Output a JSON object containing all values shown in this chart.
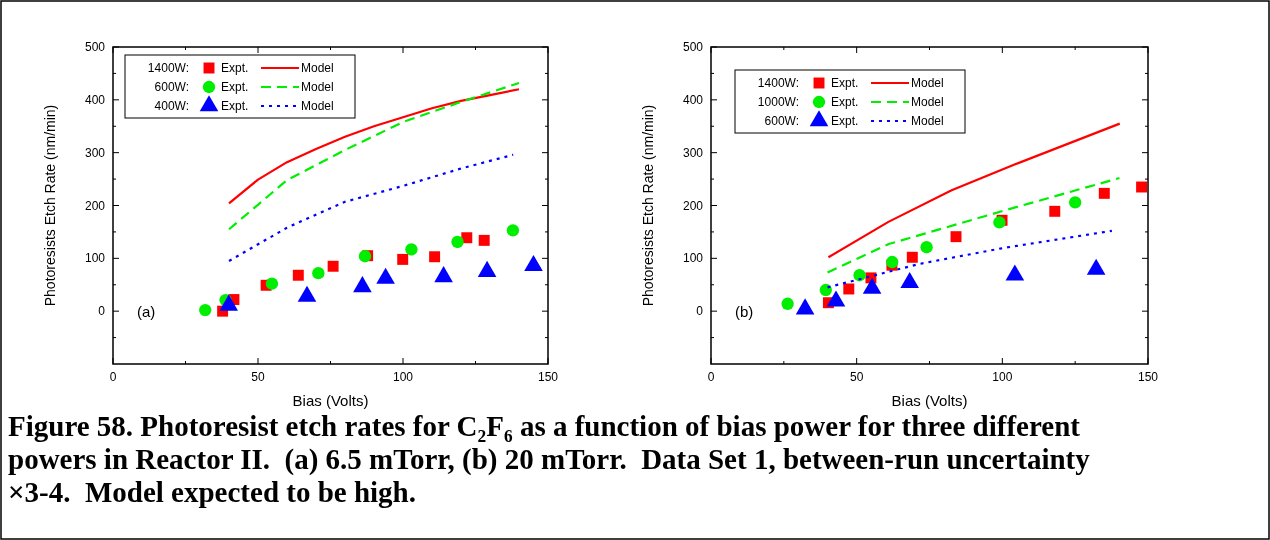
{
  "chart_data": [
    {
      "type": "scatter",
      "xlabel": "Bias (Volts)",
      "ylabel": "Photoresists Etch Rate (nm/min)",
      "xlim": [
        0,
        150
      ],
      "ylim": [
        -100,
        500
      ],
      "xticks": [
        0,
        {
          "value": 25,
          "label": null
        },
        50,
        {
          "value": 75,
          "label": null
        },
        100,
        {
          "value": 125,
          "label": null
        },
        150
      ],
      "yticks": [
        {
          "value": -50,
          "label": null
        },
        0,
        {
          "value": 50,
          "label": null
        },
        100,
        {
          "value": 150,
          "label": null
        },
        200,
        {
          "value": 250,
          "label": null
        },
        300,
        {
          "value": 350,
          "label": null
        },
        400,
        {
          "value": 450,
          "label": null
        },
        500
      ],
      "legend": "top left",
      "grid": false,
      "annotations": [
        "(a)",
        "1400W:",
        "600W:",
        "400W:",
        "Figure 58. Photoresist etch rates for C₂F₆ as a function of bias power for three different",
        "powers in Reactor II.  (a) 6.5 mTorr, (b) 20 mTorr.  Data Set 1, between-run uncertainty",
        "×3-4.  Model expected to be high."
      ],
      "series": [
        {
          "name": "Expt.",
          "type": "scatter",
          "marker": "square",
          "color": "#ff0000",
          "x": [
            37.8,
            41.7,
            52.8,
            63.9,
            75.9,
            87.8,
            99.9,
            110.9,
            122,
            128
          ],
          "values": [
            0,
            22,
            49,
            68,
            85,
            105,
            98,
            103,
            139,
            134
          ]
        },
        {
          "name": "Model",
          "type": "line",
          "line_style": "solid",
          "color": "#ff0000",
          "x": [
            40,
            50,
            60,
            70,
            80,
            90,
            100,
            110,
            120,
            130,
            140
          ],
          "values": [
            204,
            249,
            282,
            307,
            330,
            350,
            367,
            384,
            398,
            409,
            420
          ]
        },
        {
          "name": "Expt.",
          "type": "scatter",
          "marker": "circle",
          "color": "#00ee00",
          "x": [
            31.8,
            38.8,
            54.8,
            70.8,
            86.9,
            102.9,
            118.8,
            137.9
          ],
          "values": [
            2,
            21,
            52,
            72,
            104,
            117,
            131,
            153
          ]
        },
        {
          "name": "Model",
          "type": "line",
          "line_style": "dashed",
          "color": "#00ee00",
          "x": [
            40,
            60,
            80,
            100,
            120,
            140
          ],
          "values": [
            155,
            248,
            305,
            358,
            396,
            432
          ]
        },
        {
          "name": "Expt.",
          "type": "scatter",
          "marker": "triangle",
          "color": "#0000ff",
          "x": [
            39.9,
            66.9,
            86,
            94,
            114,
            129,
            145
          ],
          "values": [
            11,
            28,
            46,
            62,
            65,
            75,
            86
          ]
        },
        {
          "name": "Model",
          "type": "line",
          "line_style": "dotted",
          "color": "#0000ff",
          "x": [
            40,
            60,
            80,
            100,
            120,
            138
          ],
          "values": [
            95,
            158,
            207,
            237,
            270,
            296
          ]
        }
      ]
    },
    {
      "type": "scatter",
      "xlabel": "Bias (Volts)",
      "ylabel": "Photoresists Etch Rate (nm/min)",
      "xlim": [
        0,
        150
      ],
      "ylim": [
        -100,
        500
      ],
      "xticks": [
        0,
        {
          "value": 25,
          "label": null
        },
        50,
        {
          "value": 75,
          "label": null
        },
        100,
        {
          "value": 125,
          "label": null
        },
        150
      ],
      "yticks": [
        {
          "value": -50,
          "label": null
        },
        0,
        {
          "value": 50,
          "label": null
        },
        100,
        {
          "value": 150,
          "label": null
        },
        200,
        {
          "value": 250,
          "label": null
        },
        300,
        {
          "value": 350,
          "label": null
        },
        400,
        {
          "value": 450,
          "label": null
        },
        500
      ],
      "legend": "top left",
      "grid": false,
      "annotations": [
        "(b)",
        "1400W:",
        "1000W:",
        "600W:"
      ],
      "series": [
        {
          "name": "Expt.",
          "type": "scatter",
          "marker": "square",
          "color": "#ff0000",
          "x": [
            40.3,
            47.3,
            54.9,
            62.1,
            69.1,
            84.1,
            99.9,
            118,
            135,
            147.8
          ],
          "values": [
            16,
            42,
            63,
            87,
            102,
            141,
            172,
            189,
            223,
            235
          ]
        },
        {
          "name": "Model",
          "type": "line",
          "line_style": "solid",
          "color": "#ff0000",
          "x": [
            40.3,
            60.9,
            82.6,
            104.4,
            140.3
          ],
          "values": [
            102,
            169,
            229,
            278,
            355
          ]
        },
        {
          "name": "Expt.",
          "type": "scatter",
          "marker": "circle",
          "color": "#00ee00",
          "x": [
            26.3,
            39.4,
            51,
            62.2,
            74,
            99,
            125
          ],
          "values": [
            14,
            40,
            68,
            93,
            121,
            168,
            206
          ]
        },
        {
          "name": "Model",
          "type": "line",
          "line_style": "dashed",
          "color": "#00ee00",
          "x": [
            40,
            61,
            101,
            140.2
          ],
          "values": [
            73,
            127,
            191,
            252
          ]
        },
        {
          "name": "Expt.",
          "type": "scatter",
          "marker": "triangle",
          "color": "#0000ff",
          "x": [
            32.3,
            42.9,
            55.3,
            68.2,
            104.3,
            132.2
          ],
          "values": [
            4,
            19,
            43,
            54,
            68,
            79
          ]
        },
        {
          "name": "Model",
          "type": "line",
          "line_style": "dotted",
          "color": "#0000ff",
          "x": [
            40,
            71.2,
            99.8,
            137.6
          ],
          "values": [
            45,
            89,
            119,
            152
          ]
        }
      ]
    }
  ]
}
